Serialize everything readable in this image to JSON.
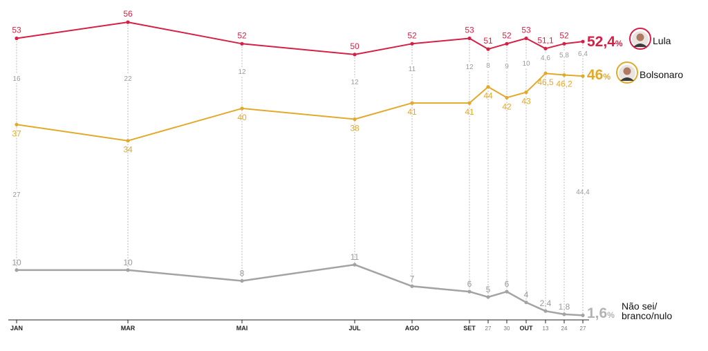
{
  "chart_data": {
    "type": "line",
    "x_ticks": [
      {
        "label": "JAN",
        "major": true
      },
      {
        "label": "MAR",
        "major": true
      },
      {
        "label": "MAI",
        "major": true
      },
      {
        "label": "JUL",
        "major": true
      },
      {
        "label": "AGO",
        "major": true
      },
      {
        "label": "SET",
        "major": true
      },
      {
        "label": "27",
        "major": false
      },
      {
        "label": "30",
        "major": false
      },
      {
        "label": "OUT",
        "major": true
      },
      {
        "label": "13",
        "major": false
      },
      {
        "label": "24",
        "major": false
      },
      {
        "label": "27",
        "major": false
      }
    ],
    "series": [
      {
        "name": "Lula",
        "color": "#d61f45",
        "values": [
          53,
          56,
          52,
          50,
          52,
          53,
          51,
          52,
          53,
          51.1,
          52,
          52.4
        ],
        "labels": [
          "53",
          "56",
          "52",
          "50",
          "52",
          "53",
          "51",
          "52",
          "53",
          "51,1",
          "52",
          ""
        ],
        "end_value": "52,4",
        "end_unit": "%",
        "end_name": "Lula"
      },
      {
        "name": "Bolsonaro",
        "color": "#e2a92a",
        "values": [
          37,
          34,
          40,
          38,
          41,
          41,
          44,
          42,
          43,
          46.5,
          46.2,
          46
        ],
        "labels": [
          "37",
          "34",
          "40",
          "38",
          "41",
          "41",
          "44",
          "42",
          "43",
          "46,5",
          "46,2",
          ""
        ],
        "end_value": "46",
        "end_unit": "%",
        "end_name": "Bolsonaro"
      },
      {
        "name": "Não sei/ branco/nulo",
        "color": "#a3a3a3",
        "values": [
          10,
          10,
          8,
          11,
          7,
          6,
          5,
          6,
          4,
          2.4,
          1.8,
          1.6
        ],
        "labels": [
          "10",
          "10",
          "8",
          "11",
          "7",
          "6",
          "5",
          "6",
          "4",
          "2,4",
          "1,8",
          ""
        ],
        "end_value": "1,6",
        "end_unit": "%",
        "end_name_lines": [
          "Não sei/",
          "branco/nulo"
        ]
      }
    ],
    "gap_lula_bolsonaro": [
      "16",
      "22",
      "12",
      "12",
      "11",
      "12",
      "8",
      "9",
      "10",
      "4,6",
      "5,8",
      "6,4"
    ],
    "gap_bolsonaro_none": [
      "27",
      "",
      "",
      "",
      "",
      "",
      "",
      "",
      "",
      "",
      "",
      "44,4"
    ]
  }
}
